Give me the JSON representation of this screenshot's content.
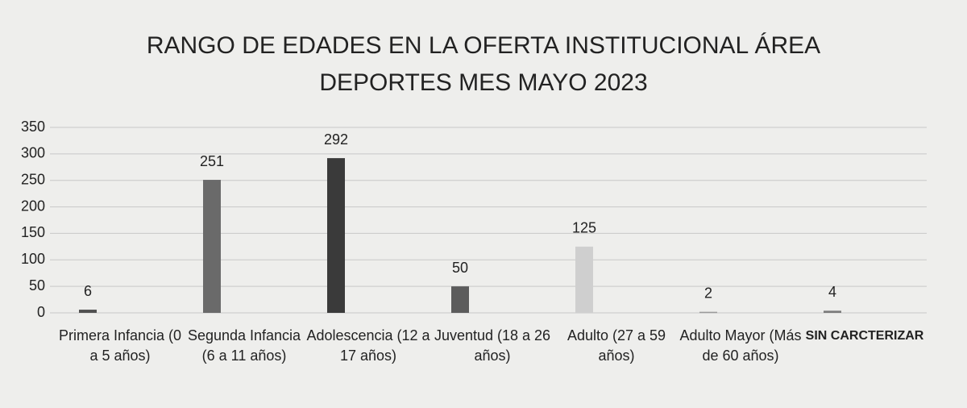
{
  "chart_data": {
    "type": "bar",
    "title": "RANGO DE EDADES EN LA OFERTA INSTITUCIONAL ÁREA DEPORTES MES MAYO 2023",
    "categories": [
      "Primera Infancia (0 a 5 años)",
      "Segunda Infancia (6 a 11 años)",
      "Adolescencia (12 a 17 años)",
      "Juventud (18 a 26 años)",
      "Adulto (27 a 59 años)",
      "Adulto Mayor (Más de 60 años)",
      "SIN CARCTERIZAR"
    ],
    "values": [
      6,
      251,
      292,
      50,
      125,
      2,
      4
    ],
    "colors": [
      "#505050",
      "#6a6a6a",
      "#3a3a3a",
      "#5c5c5c",
      "#cfcfcf",
      "#9a9a9a",
      "#7a7a7a"
    ],
    "ylim": [
      0,
      350
    ],
    "yticks": [
      0,
      50,
      100,
      150,
      200,
      250,
      300,
      350
    ],
    "grid": true
  }
}
